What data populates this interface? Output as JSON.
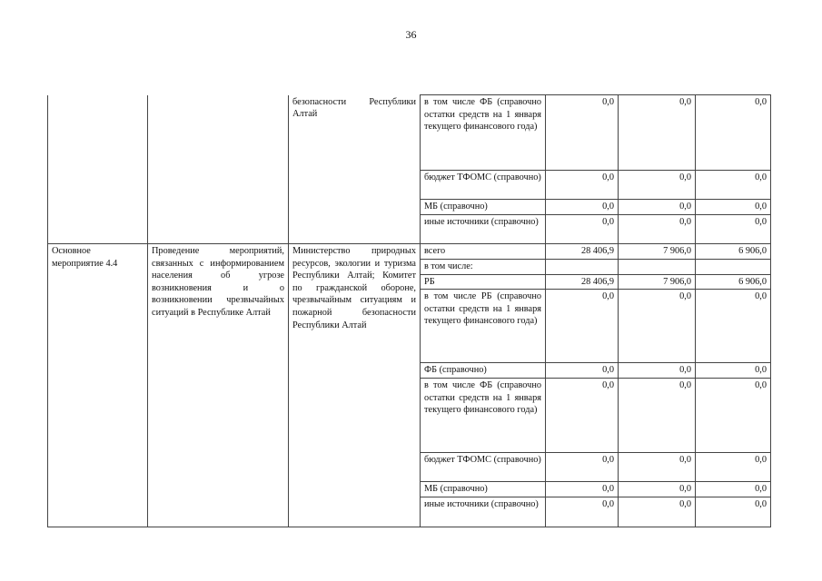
{
  "page_number": "36",
  "group1": {
    "executor": "безопасности Республики Алтай",
    "rows": [
      {
        "source": "в том числе ФБ (справочно остатки средств на 1 января текущего финансового года)",
        "v": [
          "0,0",
          "0,0",
          "0,0"
        ]
      },
      {
        "source": "бюджет ТФОМС (справочно)",
        "v": [
          "0,0",
          "0,0",
          "0,0"
        ]
      },
      {
        "source": "МБ (справочно)",
        "v": [
          "0,0",
          "0,0",
          "0,0"
        ]
      },
      {
        "source": "иные источники (справочно)",
        "v": [
          "0,0",
          "0,0",
          "0,0"
        ]
      }
    ]
  },
  "group2": {
    "name": "Основное мероприятие 4.4",
    "description": "Проведение мероприятий, связанных с информированием населения об угрозе возникновения и о возникновении чрезвычайных ситуаций в Республике Алтай",
    "executor": "Министерство природных ресурсов, экологии и туризма Республики Алтай; Комитет по гражданской обороне, чрезвычайным ситуациям и пожарной безопасности Республики Алтай",
    "rows": [
      {
        "source": "всего",
        "v": [
          "28 406,9",
          "7 906,0",
          "6 906,0"
        ]
      },
      {
        "source": "в том числе:",
        "v": [
          "",
          "",
          ""
        ]
      },
      {
        "source": "РБ",
        "v": [
          "28 406,9",
          "7 906,0",
          "6 906,0"
        ]
      },
      {
        "source": "в том числе РБ (справочно остатки средств на 1 января текущего финансового года)",
        "v": [
          "0,0",
          "0,0",
          "0,0"
        ]
      },
      {
        "source": "ФБ (справочно)",
        "v": [
          "0,0",
          "0,0",
          "0,0"
        ]
      },
      {
        "source": "в том числе ФБ (справочно остатки средств на 1 января текущего финансового года)",
        "v": [
          "0,0",
          "0,0",
          "0,0"
        ]
      },
      {
        "source": "бюджет ТФОМС (справочно)",
        "v": [
          "0,0",
          "0,0",
          "0,0"
        ]
      },
      {
        "source": "МБ (справочно)",
        "v": [
          "0,0",
          "0,0",
          "0,0"
        ]
      },
      {
        "source": "иные источники (справочно)",
        "v": [
          "0,0",
          "0,0",
          "0,0"
        ]
      }
    ]
  }
}
